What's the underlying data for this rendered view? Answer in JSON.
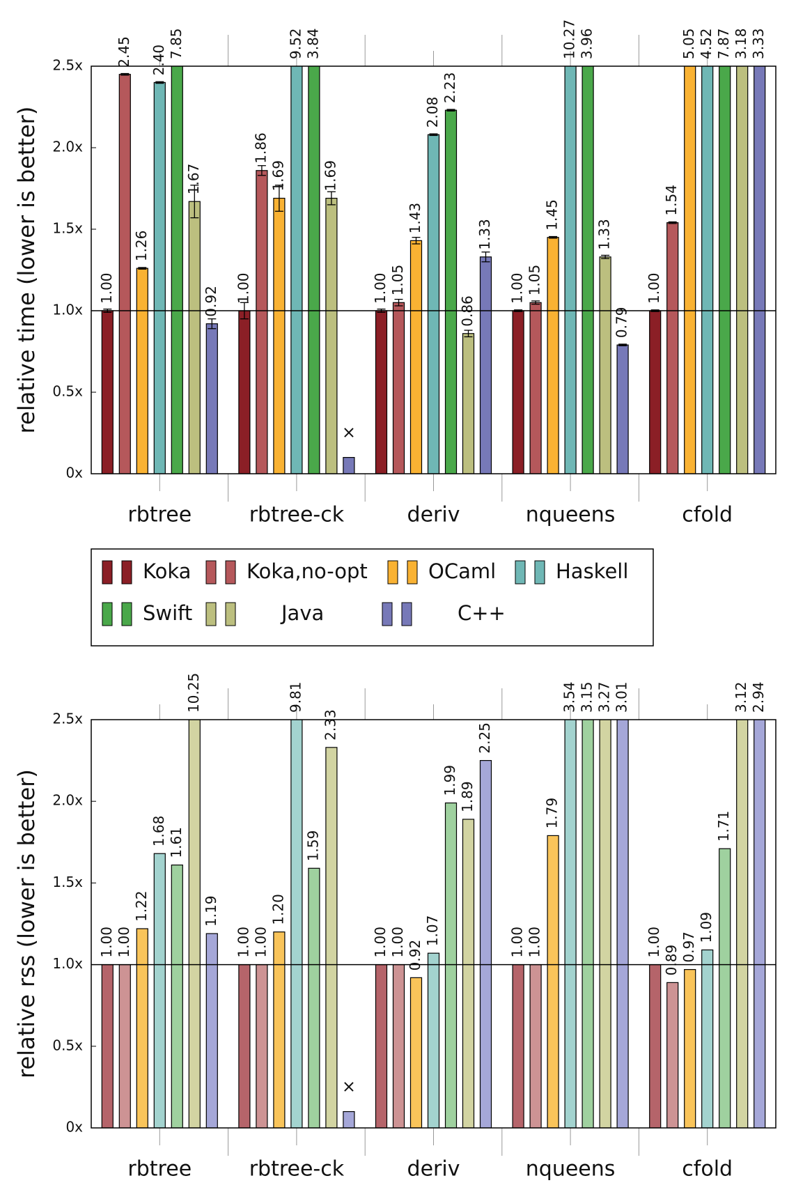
{
  "chart_data": [
    {
      "type": "bar",
      "y_label": "relative time (lower is better)",
      "categories": [
        "rbtree",
        "rbtree-ck",
        "deriv",
        "nqueens",
        "cfold"
      ],
      "ylim": [
        0,
        2.5
      ],
      "yticks": [
        {
          "value": 0,
          "label": "0x"
        },
        {
          "value": 0.5,
          "label": "0.5x"
        },
        {
          "value": 1,
          "label": "1.0x"
        },
        {
          "value": 1.5,
          "label": "1.5x"
        },
        {
          "value": 2,
          "label": "2.0x"
        },
        {
          "value": 2.5,
          "label": "2.5x"
        }
      ],
      "hline": 1,
      "legend": true,
      "series": [
        {
          "name": "Koka",
          "color": "#8b1f26",
          "values": [
            1.0,
            1.0,
            1.0,
            1.0,
            1.0
          ],
          "value_labels": [
            "1.00",
            "1.00",
            "1.00",
            "1.00",
            "1.00"
          ],
          "errors": [
            0.01,
            0.05,
            0.01,
            0.005,
            0.005
          ]
        },
        {
          "name": "Koka,no-opt",
          "color": "#b5585b",
          "values": [
            2.45,
            1.86,
            1.05,
            1.05,
            1.54
          ],
          "value_labels": [
            "2.45",
            "1.86",
            "1.05",
            "1.05",
            "1.54"
          ],
          "errors": [
            0.005,
            0.03,
            0.02,
            0.01,
            0.005
          ]
        },
        {
          "name": "OCaml",
          "color": "#f9b233",
          "values": [
            1.26,
            1.69,
            1.43,
            1.45,
            5.05
          ],
          "value_labels": [
            "1.26",
            "1.69",
            "1.43",
            "1.45",
            "5.05"
          ],
          "errors": [
            0.005,
            0.08,
            0.02,
            0.005,
            0
          ]
        },
        {
          "name": "Haskell",
          "color": "#6fb7b5",
          "values": [
            2.4,
            9.52,
            2.08,
            10.27,
            4.52
          ],
          "value_labels": [
            "2.40",
            "9.52",
            "2.08",
            "10.27",
            "4.52"
          ],
          "errors": [
            0.005,
            0,
            0.005,
            0,
            0
          ]
        },
        {
          "name": "Swift",
          "color": "#4aa84a",
          "values": [
            7.85,
            3.84,
            2.23,
            3.96,
            7.87
          ],
          "value_labels": [
            "7.85",
            "3.84",
            "2.23",
            "3.96",
            "7.87"
          ],
          "errors": [
            0,
            0,
            0.005,
            0,
            0
          ]
        },
        {
          "name": "Java",
          "color": "#bcbf7f",
          "values": [
            1.67,
            1.69,
            0.86,
            1.33,
            3.18
          ],
          "value_labels": [
            "1.67",
            "1.69",
            "0.86",
            "1.33",
            "3.18"
          ],
          "errors": [
            0.1,
            0.04,
            0.02,
            0.01,
            0.01
          ]
        },
        {
          "name": "C++",
          "color": "#7779b8",
          "values": [
            0.92,
            0.1,
            1.33,
            0.79,
            3.33
          ],
          "value_labels": [
            "0.92",
            "×",
            "1.33",
            "0.79",
            "3.33"
          ],
          "errors": [
            0.03,
            0,
            0.03,
            0.005,
            0
          ]
        }
      ]
    },
    {
      "type": "bar",
      "y_label": "relative rss (lower is better)",
      "categories": [
        "rbtree",
        "rbtree-ck",
        "deriv",
        "nqueens",
        "cfold"
      ],
      "ylim": [
        0,
        2.5
      ],
      "yticks": [
        {
          "value": 0,
          "label": "0x"
        },
        {
          "value": 0.5,
          "label": "0.5x"
        },
        {
          "value": 1,
          "label": "1.0x"
        },
        {
          "value": 1.5,
          "label": "1.5x"
        },
        {
          "value": 2,
          "label": "2.0x"
        },
        {
          "value": 2.5,
          "label": "2.5x"
        }
      ],
      "hline": 1,
      "series": [
        {
          "color": "#b5646a",
          "values": [
            1.0,
            1.0,
            1.0,
            1.0,
            1.0
          ],
          "value_labels": [
            "1.00",
            "1.00",
            "1.00",
            "1.00",
            "1.00"
          ]
        },
        {
          "color": "#cd9394",
          "values": [
            1.0,
            1.0,
            1.0,
            1.0,
            0.89
          ],
          "value_labels": [
            "1.00",
            "1.00",
            "1.00",
            "1.00",
            "0.89"
          ]
        },
        {
          "color": "#f9c45a",
          "values": [
            1.22,
            1.2,
            0.92,
            1.79,
            0.97
          ],
          "value_labels": [
            "1.22",
            "1.20",
            "0.92",
            "1.79",
            "0.97"
          ]
        },
        {
          "color": "#a3d3cf",
          "values": [
            1.68,
            9.81,
            1.07,
            3.54,
            1.09
          ],
          "value_labels": [
            "1.68",
            "9.81",
            "1.07",
            "3.54",
            "1.09"
          ]
        },
        {
          "color": "#9fd19f",
          "values": [
            1.61,
            1.59,
            1.99,
            3.15,
            1.71
          ],
          "value_labels": [
            "1.61",
            "1.59",
            "1.99",
            "3.15",
            "1.71"
          ]
        },
        {
          "color": "#d2d4a2",
          "values": [
            10.25,
            2.33,
            1.89,
            3.27,
            3.12
          ],
          "value_labels": [
            "10.25",
            "2.33",
            "1.89",
            "3.27",
            "3.12"
          ]
        },
        {
          "color": "#a5a7d8",
          "values": [
            1.19,
            0.1,
            2.25,
            3.01,
            2.94
          ],
          "value_labels": [
            "1.19",
            "×",
            "2.25",
            "3.01",
            "2.94"
          ]
        }
      ]
    }
  ]
}
